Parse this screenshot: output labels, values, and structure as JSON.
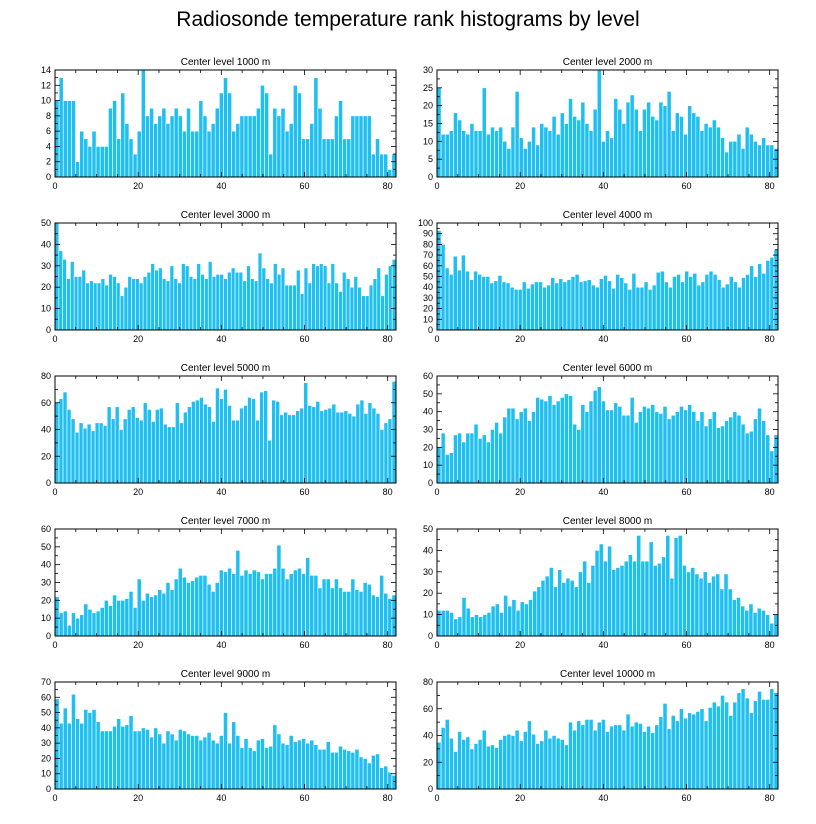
{
  "title": "Radiosonde temperature rank histograms by level",
  "colors": {
    "bar": "#1fbfef",
    "bar_edge": "#ffffff",
    "axis": "#000000"
  },
  "chart_data": [
    {
      "type": "bar",
      "title": "Center level 1000 m",
      "xlim": [
        0,
        82
      ],
      "ylim": [
        0,
        14
      ],
      "xticks": [
        0,
        20,
        40,
        60,
        80
      ],
      "yticks": [
        0,
        2,
        4,
        6,
        8,
        10,
        12,
        14
      ],
      "values": [
        10,
        13,
        10,
        10,
        10,
        2,
        6,
        5,
        4,
        6,
        4,
        4,
        4,
        9,
        10,
        5,
        11,
        7,
        5,
        3,
        6,
        14,
        8,
        9,
        7,
        8,
        9,
        7,
        8,
        9,
        8,
        6,
        9,
        6,
        6,
        10,
        8,
        6,
        7,
        9,
        11,
        13,
        11,
        6,
        7,
        8,
        8,
        8,
        8,
        9,
        12,
        11,
        3,
        9,
        8,
        9,
        6,
        7,
        12,
        11,
        5,
        5,
        7,
        13,
        9,
        5,
        5,
        5,
        8,
        10,
        5,
        5,
        8,
        8,
        8,
        8,
        8,
        3,
        5,
        3,
        3,
        1,
        3
      ]
    },
    {
      "type": "bar",
      "title": "Center level 2000 m",
      "xlim": [
        0,
        82
      ],
      "ylim": [
        0,
        30
      ],
      "xticks": [
        0,
        20,
        40,
        60,
        80
      ],
      "yticks": [
        0,
        5,
        10,
        15,
        20,
        25,
        30
      ],
      "values": [
        25,
        12,
        12,
        13,
        18,
        16,
        13,
        12,
        15,
        13,
        13,
        25,
        12,
        14,
        13,
        14,
        10,
        8,
        14,
        24,
        11,
        8,
        10,
        14,
        9,
        15,
        14,
        13,
        17,
        12,
        18,
        15,
        22,
        17,
        16,
        21,
        15,
        13,
        19,
        30,
        10,
        13,
        11,
        22,
        19,
        15,
        21,
        23,
        19,
        13,
        19,
        21,
        17,
        16,
        21,
        20,
        24,
        13,
        18,
        17,
        12,
        20,
        18,
        17,
        13,
        15,
        14,
        16,
        14,
        11,
        7,
        10,
        10,
        12,
        8,
        14,
        12,
        10,
        9,
        11,
        9,
        9,
        8
      ]
    },
    {
      "type": "bar",
      "title": "Center level 3000 m",
      "xlim": [
        0,
        82
      ],
      "ylim": [
        0,
        50
      ],
      "xticks": [
        0,
        20,
        40,
        60,
        80
      ],
      "yticks": [
        0,
        10,
        20,
        30,
        40,
        50
      ],
      "values": [
        50,
        37,
        33,
        24,
        32,
        25,
        25,
        28,
        22,
        23,
        22,
        22,
        24,
        21,
        26,
        25,
        22,
        16,
        20,
        25,
        24,
        24,
        22,
        25,
        27,
        31,
        28,
        29,
        24,
        23,
        30,
        24,
        22,
        31,
        30,
        25,
        24,
        31,
        26,
        24,
        32,
        25,
        26,
        26,
        24,
        27,
        29,
        27,
        27,
        23,
        30,
        24,
        23,
        36,
        29,
        24,
        22,
        31,
        26,
        29,
        21,
        21,
        21,
        28,
        17,
        29,
        22,
        31,
        30,
        31,
        30,
        22,
        31,
        22,
        18,
        27,
        24,
        20,
        25,
        20,
        16,
        16,
        21,
        24,
        29,
        16,
        26,
        30,
        33
      ]
    },
    {
      "type": "bar",
      "title": "Center level 4000 m",
      "xlim": [
        0,
        82
      ],
      "ylim": [
        0,
        100
      ],
      "xticks": [
        0,
        20,
        40,
        60,
        80
      ],
      "yticks": [
        0,
        10,
        20,
        30,
        40,
        50,
        60,
        70,
        80,
        90,
        100
      ],
      "values": [
        93,
        80,
        58,
        52,
        69,
        56,
        70,
        55,
        47,
        55,
        52,
        50,
        50,
        44,
        46,
        51,
        45,
        44,
        40,
        38,
        38,
        45,
        39,
        43,
        45,
        45,
        40,
        42,
        49,
        44,
        48,
        45,
        47,
        50,
        52,
        45,
        46,
        47,
        42,
        40,
        48,
        51,
        46,
        39,
        52,
        49,
        44,
        38,
        53,
        40,
        40,
        45,
        38,
        42,
        54,
        55,
        45,
        40,
        50,
        52,
        45,
        55,
        50,
        53,
        42,
        45,
        52,
        55,
        52,
        47,
        40,
        43,
        50,
        45,
        40,
        49,
        52,
        60,
        50,
        62,
        53,
        65,
        68,
        75
      ]
    },
    {
      "type": "bar",
      "title": "Center level 5000 m",
      "xlim": [
        0,
        82
      ],
      "ylim": [
        0,
        80
      ],
      "xticks": [
        0,
        20,
        40,
        60,
        80
      ],
      "yticks": [
        0,
        20,
        40,
        60,
        80
      ],
      "values": [
        60,
        63,
        68,
        55,
        48,
        38,
        45,
        41,
        44,
        39,
        45,
        45,
        43,
        57,
        48,
        57,
        40,
        48,
        55,
        57,
        49,
        47,
        60,
        55,
        46,
        55,
        56,
        44,
        42,
        42,
        60,
        45,
        53,
        57,
        61,
        62,
        64,
        59,
        57,
        46,
        71,
        63,
        70,
        58,
        47,
        47,
        56,
        58,
        64,
        63,
        47,
        68,
        69,
        32,
        62,
        61,
        51,
        53,
        51,
        51,
        54,
        56,
        75,
        58,
        57,
        61,
        54,
        55,
        56,
        59,
        53,
        53,
        54,
        52,
        50,
        59,
        62,
        52,
        60,
        56,
        52,
        40,
        45,
        48,
        76
      ]
    },
    {
      "type": "bar",
      "title": "Center level 6000 m",
      "xlim": [
        0,
        82
      ],
      "ylim": [
        0,
        60
      ],
      "xticks": [
        0,
        20,
        40,
        60,
        80
      ],
      "yticks": [
        0,
        10,
        20,
        30,
        40,
        50,
        60
      ],
      "values": [
        20,
        28,
        16,
        17,
        27,
        28,
        23,
        28,
        28,
        33,
        25,
        27,
        23,
        30,
        34,
        28,
        37,
        42,
        42,
        36,
        40,
        42,
        35,
        40,
        48,
        47,
        46,
        49,
        44,
        46,
        48,
        50,
        49,
        33,
        30,
        44,
        40,
        46,
        52,
        54,
        46,
        41,
        41,
        45,
        43,
        38,
        38,
        48,
        34,
        40,
        43,
        42,
        44,
        40,
        39,
        43,
        36,
        38,
        40,
        43,
        41,
        44,
        40,
        35,
        40,
        32,
        36,
        40,
        31,
        32,
        35,
        37,
        40,
        38,
        33,
        28,
        29,
        36,
        42,
        35,
        27,
        18,
        27
      ]
    },
    {
      "type": "bar",
      "title": "Center level 7000 m",
      "xlim": [
        0,
        82
      ],
      "ylim": [
        0,
        60
      ],
      "xticks": [
        0,
        20,
        40,
        60,
        80
      ],
      "yticks": [
        0,
        10,
        20,
        30,
        40,
        50,
        60
      ],
      "values": [
        22,
        13,
        14,
        6,
        13,
        10,
        12,
        18,
        15,
        13,
        14,
        16,
        20,
        17,
        23,
        20,
        20,
        21,
        25,
        16,
        32,
        20,
        24,
        22,
        23,
        26,
        24,
        30,
        26,
        32,
        38,
        33,
        30,
        31,
        33,
        34,
        34,
        29,
        25,
        30,
        37,
        36,
        38,
        35,
        48,
        34,
        37,
        35,
        37,
        36,
        32,
        35,
        35,
        38,
        51,
        38,
        32,
        35,
        37,
        38,
        35,
        44,
        34,
        34,
        27,
        32,
        32,
        27,
        32,
        27,
        25,
        25,
        32,
        26,
        25,
        30,
        29,
        23,
        22,
        34,
        24,
        21,
        23
      ]
    },
    {
      "type": "bar",
      "title": "Center level 8000 m",
      "xlim": [
        0,
        82
      ],
      "ylim": [
        0,
        50
      ],
      "xticks": [
        0,
        20,
        40,
        60,
        80
      ],
      "yticks": [
        0,
        10,
        20,
        30,
        40,
        50
      ],
      "values": [
        12,
        12,
        12,
        11,
        8,
        9,
        18,
        13,
        9,
        10,
        9,
        10,
        11,
        14,
        15,
        11,
        19,
        14,
        17,
        12,
        16,
        15,
        17,
        21,
        23,
        26,
        28,
        32,
        23,
        31,
        25,
        27,
        26,
        23,
        30,
        35,
        25,
        33,
        40,
        43,
        35,
        42,
        31,
        32,
        33,
        35,
        38,
        35,
        47,
        35,
        35,
        44,
        33,
        34,
        37,
        47,
        27,
        46,
        47,
        33,
        30,
        32,
        29,
        27,
        30,
        25,
        28,
        29,
        22,
        29,
        22,
        17,
        18,
        14,
        12,
        15,
        11,
        13,
        12,
        10,
        6,
        10
      ]
    },
    {
      "type": "bar",
      "title": "Center level 9000 m",
      "xlim": [
        0,
        82
      ],
      "ylim": [
        0,
        70
      ],
      "xticks": [
        0,
        20,
        40,
        60,
        80
      ],
      "yticks": [
        0,
        10,
        20,
        30,
        40,
        50,
        60,
        70
      ],
      "values": [
        59,
        43,
        53,
        43,
        62,
        46,
        43,
        52,
        50,
        52,
        44,
        38,
        38,
        38,
        41,
        46,
        41,
        42,
        48,
        38,
        38,
        40,
        39,
        34,
        40,
        36,
        30,
        38,
        36,
        32,
        39,
        38,
        36,
        35,
        35,
        32,
        34,
        37,
        32,
        30,
        35,
        50,
        30,
        44,
        35,
        27,
        33,
        27,
        25,
        32,
        33,
        27,
        28,
        42,
        36,
        30,
        29,
        35,
        31,
        32,
        33,
        30,
        32,
        29,
        26,
        26,
        31,
        24,
        24,
        28,
        26,
        25,
        24,
        26,
        21,
        20,
        17,
        22,
        23,
        14,
        15,
        11,
        9
      ]
    },
    {
      "type": "bar",
      "title": "Center level 10000 m",
      "xlim": [
        0,
        82
      ],
      "ylim": [
        0,
        80
      ],
      "xticks": [
        0,
        20,
        40,
        60,
        80
      ],
      "yticks": [
        0,
        20,
        40,
        60,
        80
      ],
      "values": [
        35,
        46,
        52,
        38,
        28,
        43,
        37,
        39,
        30,
        34,
        37,
        44,
        32,
        33,
        31,
        37,
        40,
        41,
        40,
        44,
        36,
        43,
        51,
        41,
        34,
        36,
        44,
        38,
        40,
        38,
        37,
        33,
        50,
        44,
        51,
        48,
        52,
        52,
        44,
        50,
        52,
        43,
        47,
        48,
        48,
        44,
        56,
        47,
        50,
        49,
        43,
        47,
        42,
        48,
        54,
        64,
        45,
        55,
        51,
        60,
        53,
        57,
        56,
        58,
        60,
        51,
        61,
        65,
        62,
        70,
        65,
        55,
        65,
        72,
        75,
        68,
        57,
        66,
        73,
        67,
        67,
        75,
        72
      ]
    }
  ]
}
